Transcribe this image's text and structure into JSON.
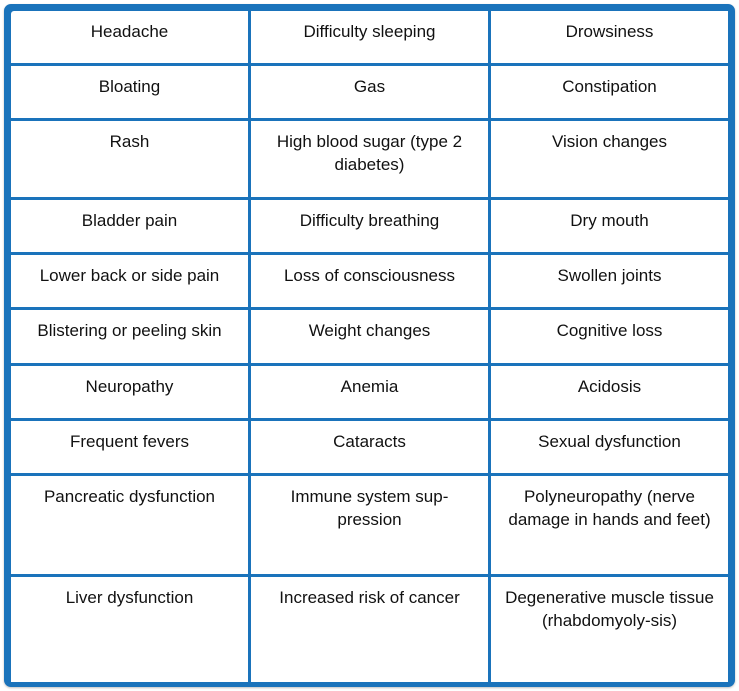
{
  "table": {
    "rows": [
      [
        "Headache",
        "Difficulty sleeping",
        "Drowsiness"
      ],
      [
        "Bloating",
        "Gas",
        "Constipation"
      ],
      [
        "Rash",
        "High blood sugar (type 2 diabetes)",
        "Vision changes"
      ],
      [
        "Bladder pain",
        "Difficulty breathing",
        "Dry mouth"
      ],
      [
        "Lower back or side pain",
        "Loss of consciousness",
        "Swollen joints"
      ],
      [
        "Blistering or peeling skin",
        "Weight changes",
        "Cognitive loss"
      ],
      [
        "Neuropathy",
        "Anemia",
        "Acidosis"
      ],
      [
        "Frequent fevers",
        "Cataracts",
        "Sexual dysfunction"
      ],
      [
        "Pancreatic dysfunction",
        "Immune system sup-pression",
        "Polyneuropathy (nerve damage in hands and feet)"
      ],
      [
        "Liver dysfunction",
        "Increased risk of cancer",
        "Degenerative muscle tissue (rhabdomyoly-sis)"
      ]
    ]
  },
  "colors": {
    "border": "#1a73bb",
    "cell_background": "#ffffff",
    "text": "#111111"
  }
}
